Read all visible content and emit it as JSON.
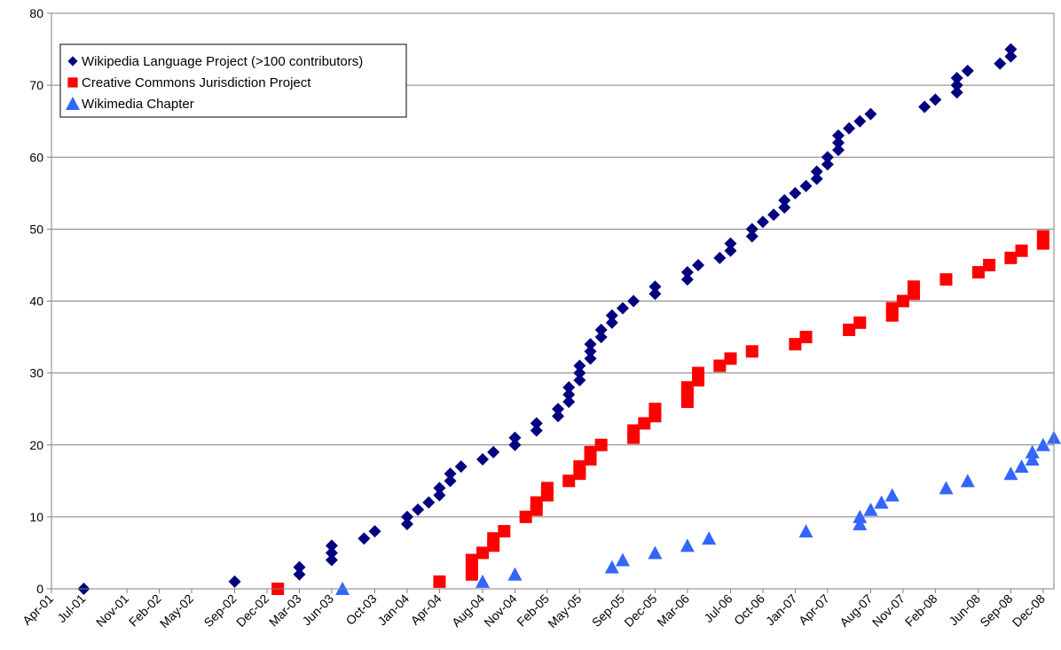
{
  "chart_data": {
    "type": "scatter",
    "title": "",
    "xlabel": "",
    "ylabel": "",
    "ylim": [
      0,
      80
    ],
    "yticks": [
      0,
      10,
      20,
      30,
      40,
      50,
      60,
      70,
      80
    ],
    "xlim": [
      "2001-04",
      "2009-01"
    ],
    "xticks": [
      "Apr-01",
      "Jul-01",
      "Nov-01",
      "Feb-02",
      "May-02",
      "Sep-02",
      "Dec-02",
      "Mar-03",
      "Jun-03",
      "Oct-03",
      "Jan-04",
      "Apr-04",
      "Aug-04",
      "Nov-04",
      "Feb-05",
      "May-05",
      "Sep-05",
      "Dec-05",
      "Mar-06",
      "Jul-06",
      "Oct-06",
      "Jan-07",
      "Apr-07",
      "Aug-07",
      "Nov-07",
      "Feb-08",
      "Jun-08",
      "Sep-08",
      "Dec-08"
    ],
    "grid": "horizontal",
    "legend_position": "top-left",
    "series": [
      {
        "name": "Wikipedia Language Project (>100 contributors)",
        "marker": "diamond",
        "color": "#000080",
        "points": [
          [
            "2001-07",
            0
          ],
          [
            "2002-09",
            1
          ],
          [
            "2003-03",
            2
          ],
          [
            "2003-03",
            3
          ],
          [
            "2003-06",
            4
          ],
          [
            "2003-06",
            5
          ],
          [
            "2003-06",
            6
          ],
          [
            "2003-09",
            7
          ],
          [
            "2003-10",
            8
          ],
          [
            "2004-01",
            9
          ],
          [
            "2004-01",
            10
          ],
          [
            "2004-02",
            11
          ],
          [
            "2004-03",
            12
          ],
          [
            "2004-04",
            13
          ],
          [
            "2004-04",
            14
          ],
          [
            "2004-05",
            15
          ],
          [
            "2004-05",
            16
          ],
          [
            "2004-06",
            17
          ],
          [
            "2004-08",
            18
          ],
          [
            "2004-09",
            19
          ],
          [
            "2004-11",
            20
          ],
          [
            "2004-11",
            21
          ],
          [
            "2005-01",
            22
          ],
          [
            "2005-01",
            23
          ],
          [
            "2005-03",
            24
          ],
          [
            "2005-03",
            25
          ],
          [
            "2005-04",
            26
          ],
          [
            "2005-04",
            27
          ],
          [
            "2005-04",
            28
          ],
          [
            "2005-05",
            29
          ],
          [
            "2005-05",
            30
          ],
          [
            "2005-05",
            31
          ],
          [
            "2005-06",
            32
          ],
          [
            "2005-06",
            33
          ],
          [
            "2005-06",
            34
          ],
          [
            "2005-07",
            35
          ],
          [
            "2005-07",
            36
          ],
          [
            "2005-08",
            37
          ],
          [
            "2005-08",
            38
          ],
          [
            "2005-09",
            39
          ],
          [
            "2005-10",
            40
          ],
          [
            "2005-12",
            41
          ],
          [
            "2005-12",
            42
          ],
          [
            "2006-03",
            43
          ],
          [
            "2006-03",
            44
          ],
          [
            "2006-04",
            45
          ],
          [
            "2006-06",
            46
          ],
          [
            "2006-07",
            47
          ],
          [
            "2006-07",
            48
          ],
          [
            "2006-09",
            49
          ],
          [
            "2006-09",
            50
          ],
          [
            "2006-10",
            51
          ],
          [
            "2006-11",
            52
          ],
          [
            "2006-12",
            53
          ],
          [
            "2006-12",
            54
          ],
          [
            "2007-01",
            55
          ],
          [
            "2007-02",
            56
          ],
          [
            "2007-03",
            57
          ],
          [
            "2007-03",
            58
          ],
          [
            "2007-04",
            59
          ],
          [
            "2007-04",
            60
          ],
          [
            "2007-05",
            61
          ],
          [
            "2007-05",
            62
          ],
          [
            "2007-05",
            63
          ],
          [
            "2007-06",
            64
          ],
          [
            "2007-07",
            65
          ],
          [
            "2007-08",
            66
          ],
          [
            "2008-01",
            67
          ],
          [
            "2008-02",
            68
          ],
          [
            "2008-04",
            69
          ],
          [
            "2008-04",
            70
          ],
          [
            "2008-04",
            71
          ],
          [
            "2008-05",
            72
          ],
          [
            "2008-08",
            73
          ],
          [
            "2008-09",
            74
          ],
          [
            "2008-09",
            75
          ]
        ]
      },
      {
        "name": "Creative Commons Jurisdiction Project",
        "marker": "square",
        "color": "#ff0000",
        "points": [
          [
            "2003-01",
            0
          ],
          [
            "2004-04",
            1
          ],
          [
            "2004-07",
            2
          ],
          [
            "2004-07",
            3
          ],
          [
            "2004-07",
            4
          ],
          [
            "2004-08",
            5
          ],
          [
            "2004-09",
            6
          ],
          [
            "2004-09",
            7
          ],
          [
            "2004-10",
            8
          ],
          [
            "2004-12",
            10
          ],
          [
            "2005-01",
            11
          ],
          [
            "2005-01",
            12
          ],
          [
            "2005-02",
            13
          ],
          [
            "2005-02",
            14
          ],
          [
            "2005-04",
            15
          ],
          [
            "2005-05",
            16
          ],
          [
            "2005-05",
            17
          ],
          [
            "2005-06",
            18
          ],
          [
            "2005-06",
            19
          ],
          [
            "2005-07",
            20
          ],
          [
            "2005-10",
            21
          ],
          [
            "2005-10",
            22
          ],
          [
            "2005-11",
            23
          ],
          [
            "2005-12",
            24
          ],
          [
            "2005-12",
            25
          ],
          [
            "2006-03",
            26
          ],
          [
            "2006-03",
            27
          ],
          [
            "2006-03",
            28
          ],
          [
            "2006-04",
            29
          ],
          [
            "2006-04",
            30
          ],
          [
            "2006-06",
            31
          ],
          [
            "2006-07",
            32
          ],
          [
            "2006-09",
            33
          ],
          [
            "2007-01",
            34
          ],
          [
            "2007-02",
            35
          ],
          [
            "2007-06",
            36
          ],
          [
            "2007-07",
            37
          ],
          [
            "2007-10",
            38
          ],
          [
            "2007-10",
            39
          ],
          [
            "2007-11",
            40
          ],
          [
            "2007-12",
            41
          ],
          [
            "2007-12",
            42
          ],
          [
            "2008-03",
            43
          ],
          [
            "2008-06",
            44
          ],
          [
            "2008-07",
            45
          ],
          [
            "2008-09",
            46
          ],
          [
            "2008-10",
            47
          ],
          [
            "2008-12",
            48
          ],
          [
            "2008-12",
            49
          ]
        ]
      },
      {
        "name": "Wikimedia Chapter",
        "marker": "triangle",
        "color": "#3366ff",
        "points": [
          [
            "2003-07",
            0
          ],
          [
            "2004-08",
            1
          ],
          [
            "2004-11",
            2
          ],
          [
            "2005-08",
            3
          ],
          [
            "2005-09",
            4
          ],
          [
            "2005-12",
            5
          ],
          [
            "2006-03",
            6
          ],
          [
            "2006-05",
            7
          ],
          [
            "2007-02",
            8
          ],
          [
            "2007-07",
            9
          ],
          [
            "2007-07",
            10
          ],
          [
            "2007-08",
            11
          ],
          [
            "2007-09",
            12
          ],
          [
            "2007-10",
            13
          ],
          [
            "2008-03",
            14
          ],
          [
            "2008-05",
            15
          ],
          [
            "2008-09",
            16
          ],
          [
            "2008-10",
            17
          ],
          [
            "2008-11",
            18
          ],
          [
            "2008-11",
            19
          ],
          [
            "2008-12",
            20
          ],
          [
            "2009-01",
            21
          ]
        ]
      }
    ]
  }
}
